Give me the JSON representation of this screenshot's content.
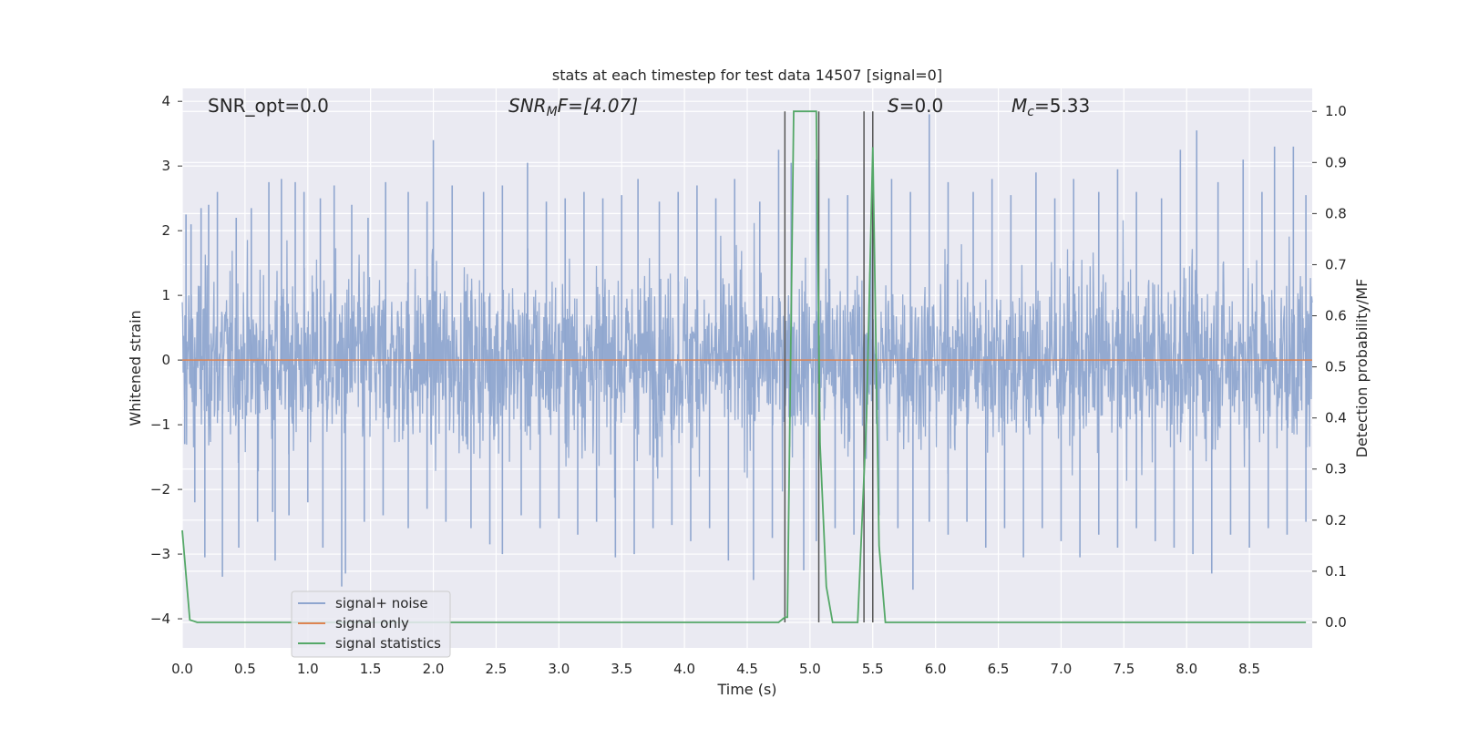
{
  "chart_data": {
    "type": "line",
    "title": "stats at each timestep for test data 14507 [signal=0]",
    "xlabel": "Time (s)",
    "ylabel": "Whitened strain",
    "ylabel_right": "Detection probability/MF",
    "xlim": [
      0.0,
      9.0
    ],
    "ylim": [
      -4.45,
      4.2
    ],
    "ylim_right": [
      -0.05,
      1.045
    ],
    "x_ticks": [
      0.0,
      0.5,
      1.0,
      1.5,
      2.0,
      2.5,
      3.0,
      3.5,
      4.0,
      4.5,
      5.0,
      5.5,
      6.0,
      6.5,
      7.0,
      7.5,
      8.0,
      8.5
    ],
    "x_tick_labels": [
      "0.0",
      "0.5",
      "1.0",
      "1.5",
      "2.0",
      "2.5",
      "3.0",
      "3.5",
      "4.0",
      "4.5",
      "5.0",
      "5.5",
      "6.0",
      "6.5",
      "7.0",
      "7.5",
      "8.0",
      "8.5"
    ],
    "y_ticks": [
      -4,
      -3,
      -2,
      -1,
      0,
      1,
      2,
      3,
      4
    ],
    "y_tick_labels": [
      "−4",
      "−3",
      "−2",
      "−1",
      "0",
      "1",
      "2",
      "3",
      "4"
    ],
    "y_ticks_right": [
      0.0,
      0.1,
      0.2,
      0.3,
      0.4,
      0.5,
      0.6,
      0.7,
      0.8,
      0.9,
      1.0
    ],
    "y_tick_labels_right": [
      "0.0",
      "0.1",
      "0.2",
      "0.3",
      "0.4",
      "0.5",
      "0.6",
      "0.7",
      "0.8",
      "0.9",
      "1.0"
    ],
    "grid": true,
    "legend_placement": "lower-left",
    "annotations": {
      "snr_opt": "SNR_opt=0.0",
      "snr_mf_main": "SNR",
      "snr_mf_sub": "M",
      "snr_mf_rest": "F=[4.07]",
      "s_italic": "S",
      "s_rest": "=0.0",
      "mc_main": "M",
      "mc_sub": "c",
      "mc_rest": "=5.33"
    },
    "series": [
      {
        "name": "signal+ noise",
        "color": "#8fa6cf",
        "style": "dense noise, amplitude about ±2.5 with peaks to 3.8",
        "spikes_up": [
          [
            0.03,
            2.25
          ],
          [
            0.07,
            2.1
          ],
          [
            0.15,
            2.35
          ],
          [
            0.21,
            2.4
          ],
          [
            0.28,
            2.6
          ],
          [
            0.43,
            2.2
          ],
          [
            0.55,
            2.35
          ],
          [
            0.69,
            2.75
          ],
          [
            0.79,
            2.8
          ],
          [
            0.9,
            2.75
          ],
          [
            0.97,
            2.6
          ],
          [
            1.1,
            2.5
          ],
          [
            1.21,
            2.7
          ],
          [
            1.35,
            2.4
          ],
          [
            1.48,
            2.2
          ],
          [
            1.62,
            2.75
          ],
          [
            1.8,
            2.6
          ],
          [
            1.95,
            2.45
          ],
          [
            2.0,
            3.4
          ],
          [
            2.15,
            2.7
          ],
          [
            2.4,
            2.6
          ],
          [
            2.55,
            2.7
          ],
          [
            2.75,
            3.05
          ],
          [
            2.9,
            2.45
          ],
          [
            3.05,
            2.5
          ],
          [
            3.2,
            2.6
          ],
          [
            3.35,
            2.5
          ],
          [
            3.5,
            2.55
          ],
          [
            3.63,
            2.8
          ],
          [
            3.8,
            2.45
          ],
          [
            3.95,
            2.6
          ],
          [
            4.1,
            2.7
          ],
          [
            4.25,
            2.5
          ],
          [
            4.4,
            2.8
          ],
          [
            4.6,
            2.45
          ],
          [
            4.75,
            3.25
          ],
          [
            4.85,
            3.05
          ],
          [
            5.05,
            3.1
          ],
          [
            5.15,
            2.5
          ],
          [
            5.3,
            2.55
          ],
          [
            5.5,
            3.3
          ],
          [
            5.65,
            2.8
          ],
          [
            5.8,
            2.6
          ],
          [
            5.95,
            3.8
          ],
          [
            6.1,
            2.75
          ],
          [
            6.3,
            2.6
          ],
          [
            6.45,
            2.8
          ],
          [
            6.6,
            2.55
          ],
          [
            6.8,
            2.9
          ],
          [
            6.95,
            2.5
          ],
          [
            7.1,
            2.8
          ],
          [
            7.3,
            2.6
          ],
          [
            7.45,
            2.95
          ],
          [
            7.6,
            2.6
          ],
          [
            7.8,
            2.5
          ],
          [
            7.95,
            3.25
          ],
          [
            8.08,
            3.55
          ],
          [
            8.25,
            2.75
          ],
          [
            8.45,
            3.1
          ],
          [
            8.6,
            2.6
          ],
          [
            8.7,
            3.3
          ],
          [
            8.85,
            3.3
          ],
          [
            8.95,
            2.55
          ]
        ],
        "spikes_down": [
          [
            0.02,
            -1.3
          ],
          [
            0.1,
            -2.2
          ],
          [
            0.18,
            -3.05
          ],
          [
            0.32,
            -3.35
          ],
          [
            0.45,
            -2.9
          ],
          [
            0.6,
            -2.5
          ],
          [
            0.72,
            -2.35
          ],
          [
            0.74,
            -3.1
          ],
          [
            0.85,
            -2.4
          ],
          [
            1.0,
            -2.2
          ],
          [
            1.12,
            -2.9
          ],
          [
            1.27,
            -3.5
          ],
          [
            1.3,
            -3.3
          ],
          [
            1.45,
            -2.5
          ],
          [
            1.6,
            -2.4
          ],
          [
            1.8,
            -2.6
          ],
          [
            1.95,
            -2.3
          ],
          [
            2.1,
            -2.5
          ],
          [
            2.3,
            -2.6
          ],
          [
            2.45,
            -2.85
          ],
          [
            2.55,
            -3.0
          ],
          [
            2.7,
            -2.4
          ],
          [
            2.85,
            -2.6
          ],
          [
            3.0,
            -2.45
          ],
          [
            3.15,
            -2.7
          ],
          [
            3.3,
            -2.5
          ],
          [
            3.45,
            -3.05
          ],
          [
            3.6,
            -3.0
          ],
          [
            3.75,
            -2.6
          ],
          [
            3.9,
            -2.55
          ],
          [
            4.05,
            -2.8
          ],
          [
            4.2,
            -2.6
          ],
          [
            4.35,
            -3.1
          ],
          [
            4.55,
            -3.4
          ],
          [
            4.7,
            -2.75
          ],
          [
            4.95,
            -3.25
          ],
          [
            5.05,
            -2.8
          ],
          [
            5.2,
            -2.6
          ],
          [
            5.35,
            -2.7
          ],
          [
            5.55,
            -2.4
          ],
          [
            5.7,
            -2.6
          ],
          [
            5.82,
            -3.55
          ],
          [
            5.95,
            -2.5
          ],
          [
            6.1,
            -2.7
          ],
          [
            6.25,
            -2.5
          ],
          [
            6.4,
            -2.9
          ],
          [
            6.55,
            -2.6
          ],
          [
            6.7,
            -3.05
          ],
          [
            6.85,
            -2.6
          ],
          [
            7.0,
            -2.8
          ],
          [
            7.15,
            -3.05
          ],
          [
            7.3,
            -2.7
          ],
          [
            7.45,
            -2.9
          ],
          [
            7.6,
            -2.6
          ],
          [
            7.75,
            -2.8
          ],
          [
            7.9,
            -2.9
          ],
          [
            8.05,
            -3.0
          ],
          [
            8.2,
            -3.3
          ],
          [
            8.35,
            -2.7
          ],
          [
            8.5,
            -2.9
          ],
          [
            8.65,
            -2.6
          ],
          [
            8.8,
            -2.7
          ],
          [
            8.95,
            -2.5
          ]
        ]
      },
      {
        "name": "signal only",
        "color": "#dd8452",
        "x": [
          0.0,
          9.0
        ],
        "y": [
          0.0,
          0.0
        ]
      },
      {
        "name": "signal statistics",
        "color": "#55a868",
        "axis": "right",
        "x": [
          0.0,
          0.06,
          0.12,
          4.75,
          4.8,
          4.82,
          4.87,
          4.92,
          4.98,
          5.05,
          5.08,
          5.13,
          5.18,
          5.38,
          5.45,
          5.5,
          5.55,
          5.6,
          8.95
        ],
        "y": [
          0.18,
          0.005,
          0.0,
          0.0,
          0.01,
          0.01,
          1.0,
          1.0,
          1.0,
          1.0,
          0.35,
          0.07,
          0.0,
          0.0,
          0.4,
          0.93,
          0.15,
          0.0,
          0.0
        ]
      }
    ],
    "vertical_lines": [
      4.8,
      5.07,
      5.43,
      5.5
    ]
  }
}
